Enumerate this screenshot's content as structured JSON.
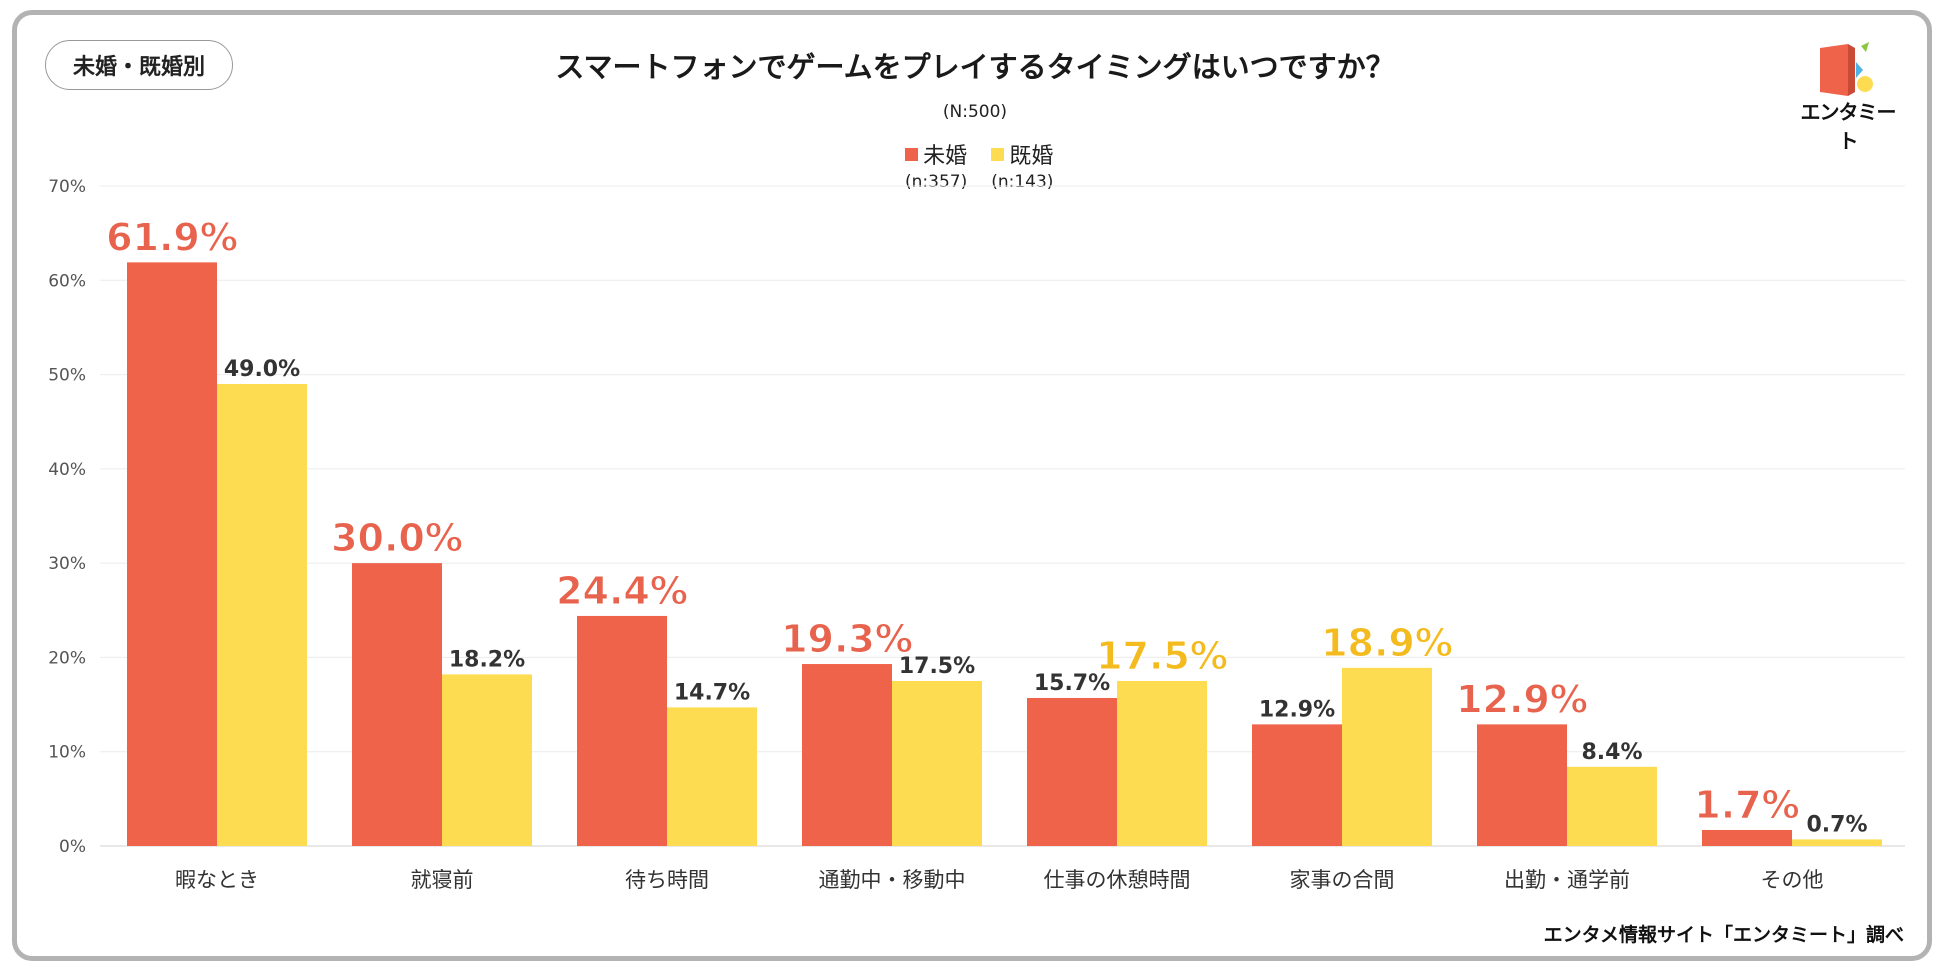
{
  "badge": "未婚・既婚別",
  "logo_text": "エンタミート",
  "credit": "エンタメ情報サイト「エンタミート」調べ",
  "chart_data": {
    "type": "bar",
    "title": "スマートフォンでゲームをプレイするタイミングはいつですか？",
    "subtitle": "(N:500)",
    "categories": [
      "暇なとき",
      "就寝前",
      "待ち時間",
      "通勤中・移動中",
      "仕事の休憩時間",
      "家事の合間",
      "出勤・通学前",
      "その他"
    ],
    "series": [
      {
        "name": "未婚",
        "n_label": "(n:357)",
        "color": "#ef634b",
        "values": [
          61.9,
          30.0,
          24.4,
          19.3,
          15.7,
          12.9,
          12.9,
          1.7
        ],
        "labels": [
          "61.9%",
          "30.0%",
          "24.4%",
          "19.3%",
          "15.7%",
          "12.9%",
          "12.9%",
          "1.7%"
        ]
      },
      {
        "name": "既婚",
        "n_label": "(n:143)",
        "color": "#fddc52",
        "values": [
          49.0,
          18.2,
          14.7,
          17.5,
          17.5,
          18.9,
          8.4,
          0.7
        ],
        "labels": [
          "49.0%",
          "18.2%",
          "14.7%",
          "17.5%",
          "17.5%",
          "18.9%",
          "8.4%",
          "0.7%"
        ]
      }
    ],
    "highlight_colors": [
      "#e8634d",
      "#f4bb1e"
    ],
    "y_ticks": [
      "0%",
      "10%",
      "20%",
      "30%",
      "40%",
      "50%",
      "60%",
      "70%"
    ],
    "ylim": [
      0,
      70
    ],
    "xlabel": "",
    "ylabel": "",
    "legend": "top-center"
  }
}
